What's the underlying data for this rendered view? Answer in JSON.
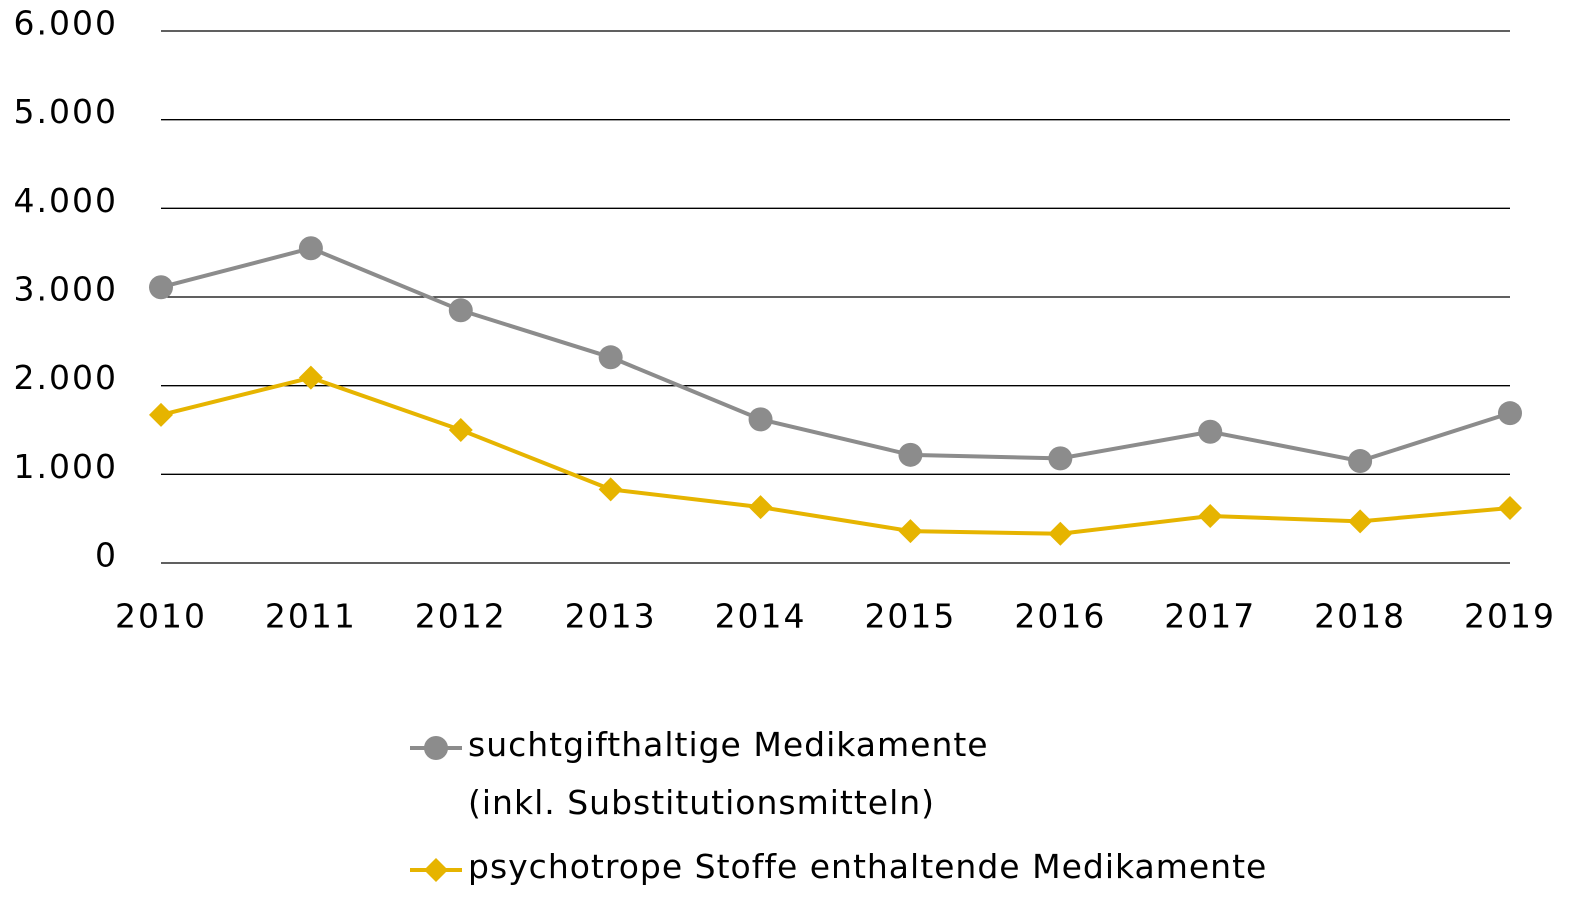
{
  "chart_data": {
    "type": "line",
    "categories": [
      "2010",
      "2011",
      "2012",
      "2013",
      "2014",
      "2015",
      "2016",
      "2017",
      "2018",
      "2019"
    ],
    "series": [
      {
        "name": "suchtgifthaltige Medikamente\n(inkl. Substitutionsmitteln)",
        "color": "#8c8c8c",
        "marker": "circle",
        "values": [
          3110,
          3550,
          2850,
          2320,
          1620,
          1220,
          1180,
          1480,
          1150,
          1690
        ]
      },
      {
        "name": "psychotrope Stoffe enthaltende Medikamente",
        "color": "#e6b400",
        "marker": "diamond",
        "values": [
          1670,
          2090,
          1500,
          830,
          630,
          360,
          330,
          530,
          470,
          620
        ]
      }
    ],
    "ylim": [
      0,
      6000
    ],
    "yticks": [
      0,
      {
        "value": 1000,
        "label": "1.000"
      },
      {
        "value": 2000,
        "label": "2.000"
      },
      {
        "value": 3000,
        "label": "3.000"
      },
      {
        "value": 4000,
        "label": "4.000"
      },
      {
        "value": 5000,
        "label": "5.000"
      },
      {
        "value": 6000,
        "label": "6.000"
      }
    ],
    "grid": true
  }
}
